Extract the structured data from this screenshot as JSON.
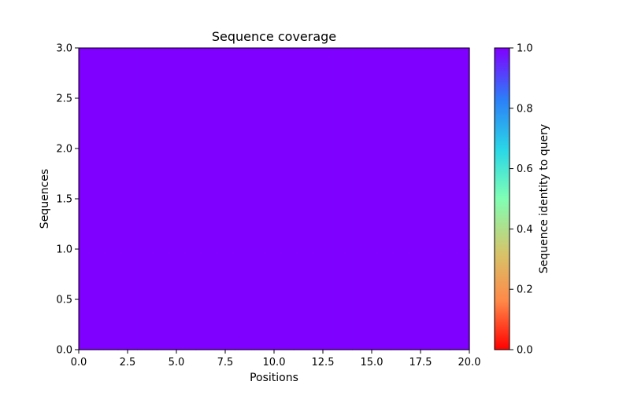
{
  "chart_data": {
    "type": "heatmap",
    "title": "Sequence coverage",
    "xlabel": "Positions",
    "ylabel": "Sequences",
    "xlim": [
      0,
      20
    ],
    "ylim": [
      0,
      3
    ],
    "x_ticks": [
      "0.0",
      "2.5",
      "5.0",
      "7.5",
      "10.0",
      "12.5",
      "15.0",
      "17.5",
      "20.0"
    ],
    "y_ticks": [
      "0.0",
      "0.5",
      "1.0",
      "1.5",
      "2.0",
      "2.5",
      "3.0"
    ],
    "rows": 3,
    "columns": 20,
    "values": [
      [
        1.0,
        1.0,
        1.0,
        1.0,
        1.0,
        1.0,
        1.0,
        1.0,
        1.0,
        1.0,
        1.0,
        1.0,
        1.0,
        1.0,
        1.0,
        1.0,
        1.0,
        1.0,
        1.0,
        1.0
      ],
      [
        1.0,
        1.0,
        1.0,
        1.0,
        1.0,
        1.0,
        1.0,
        1.0,
        1.0,
        1.0,
        1.0,
        1.0,
        1.0,
        1.0,
        1.0,
        1.0,
        1.0,
        1.0,
        1.0,
        1.0
      ],
      [
        1.0,
        1.0,
        1.0,
        1.0,
        1.0,
        1.0,
        1.0,
        1.0,
        1.0,
        1.0,
        1.0,
        1.0,
        1.0,
        1.0,
        1.0,
        1.0,
        1.0,
        1.0,
        1.0,
        1.0
      ]
    ],
    "colorbar": {
      "label": "Sequence identity to query",
      "range": [
        0,
        1
      ],
      "ticks": [
        "0.0",
        "0.2",
        "0.4",
        "0.6",
        "0.8",
        "1.0"
      ],
      "colormap": "rainbow_r"
    },
    "grid": false,
    "legend": "none"
  },
  "colors": {
    "cell_fill": "#7f00ff",
    "axis": "#000000"
  }
}
